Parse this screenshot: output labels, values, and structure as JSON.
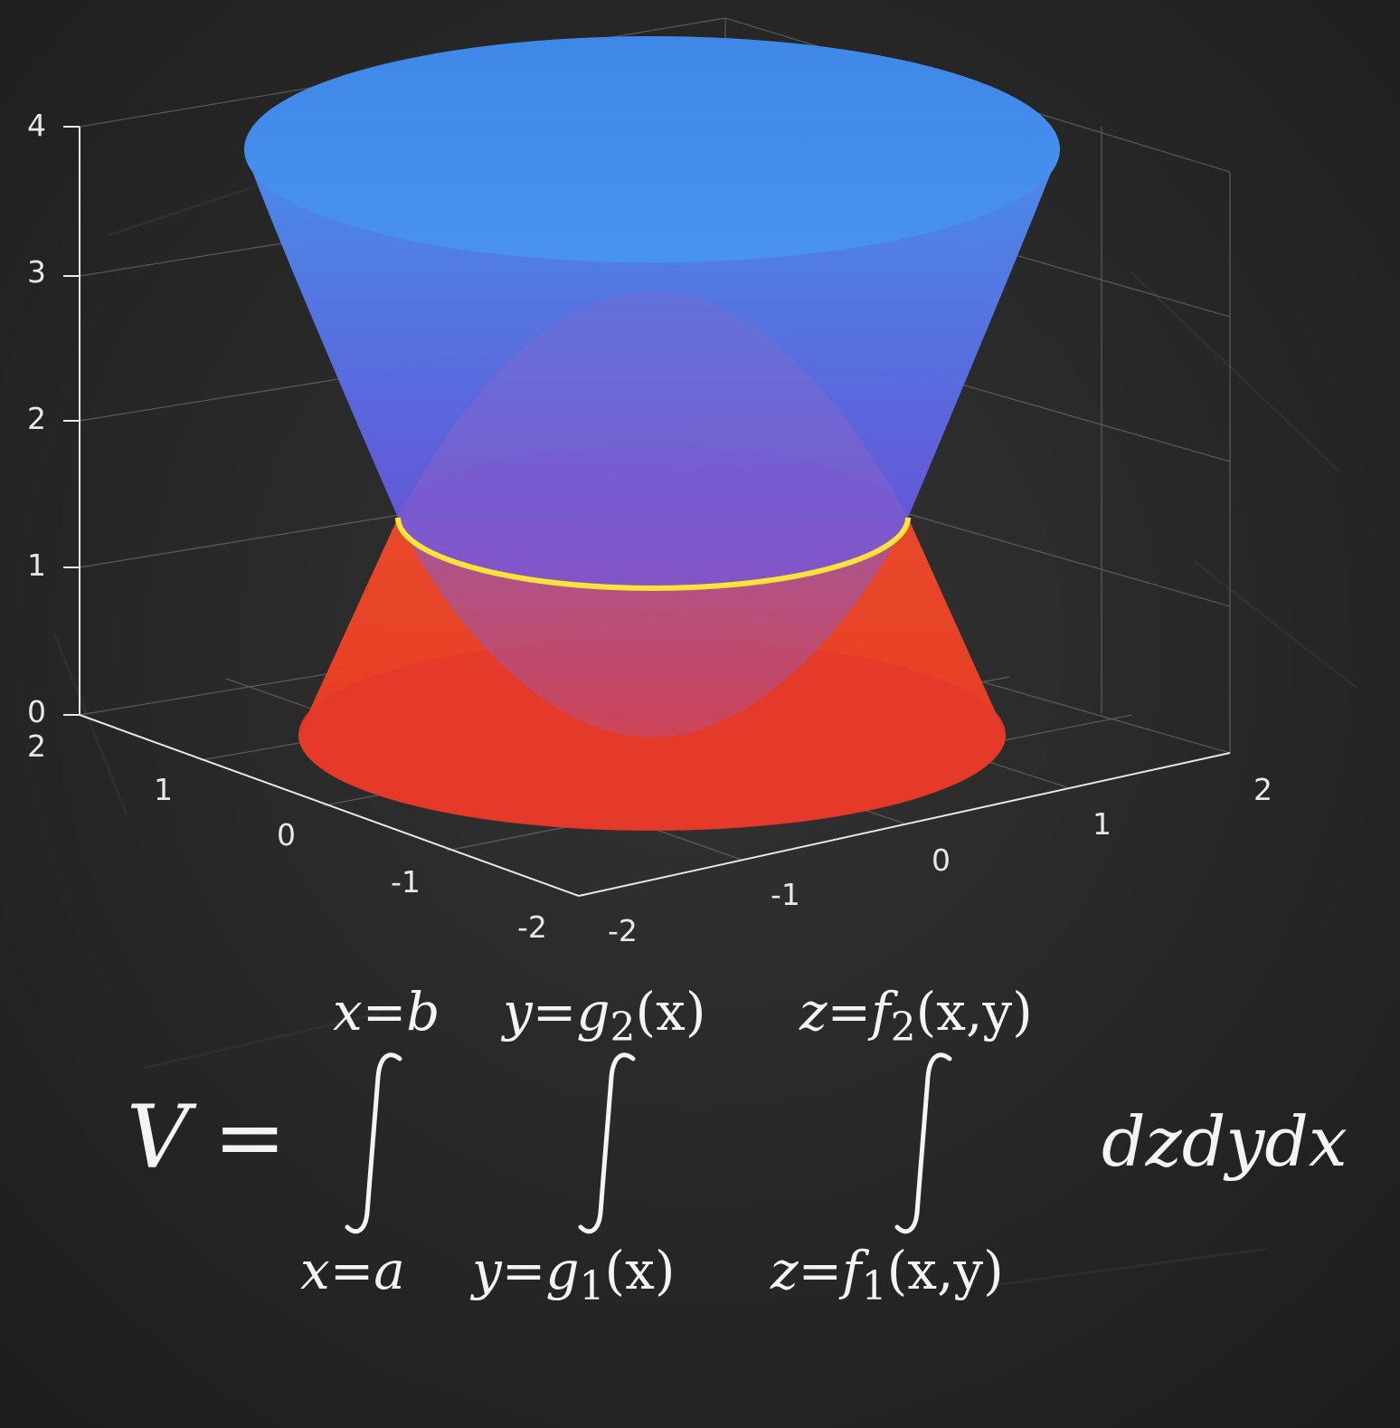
{
  "figure": {
    "z_ticks": [
      "0",
      "1",
      "2",
      "3",
      "4"
    ],
    "y_ticks": [
      "2",
      "1",
      "0",
      "-1",
      "-2"
    ],
    "x_ticks": [
      "-2",
      "-1",
      "0",
      "1",
      "2"
    ],
    "colors": {
      "upper_surface_top": "#4a8ff0",
      "upper_surface_bottom": "#6a4fd8",
      "lower_surface": "#f04428",
      "intersection_curve": "#ffe23a",
      "background": "#262626"
    }
  },
  "formula": {
    "lhs": "V",
    "equals": "=",
    "outer": {
      "upper": "x=b",
      "lower": "x=a"
    },
    "middle": {
      "upper_prefix": "y=g",
      "upper_sub": "2",
      "upper_suffix": "(x)",
      "lower_prefix": "y=g",
      "lower_sub": "1",
      "lower_suffix": "(x)"
    },
    "inner": {
      "upper_prefix": "z=f",
      "upper_sub": "2",
      "upper_suffix": "(x,y)",
      "lower_prefix": "z=f",
      "lower_sub": "1",
      "lower_suffix": "(x,y)"
    },
    "differential": "dzdydx"
  }
}
